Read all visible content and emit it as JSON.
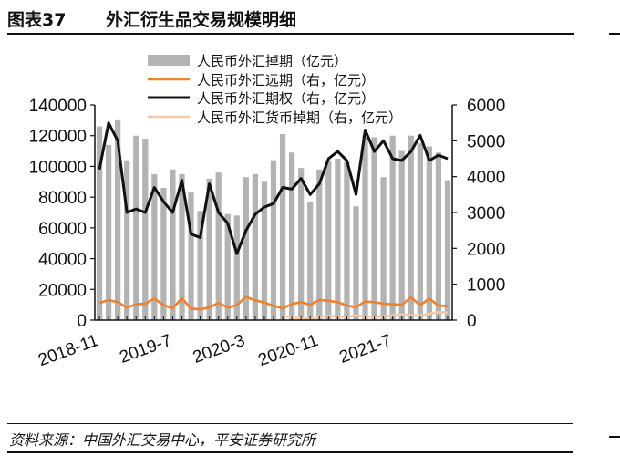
{
  "figure": {
    "number": "图表37",
    "title": "外汇衍生品交易规模明细",
    "source": "资料来源：中国外汇交易中心，平安证券研究所"
  },
  "chart_data": {
    "type": "bar",
    "x_tick_labels": [
      "2018-11",
      "2019-7",
      "2020-3",
      "2020-11",
      "2021-7"
    ],
    "left_axis": {
      "ylim": [
        0,
        140000
      ],
      "ticks": [
        "0",
        "20000",
        "40000",
        "60000",
        "80000",
        "100000",
        "120000",
        "140000"
      ]
    },
    "right_axis": {
      "ylim": [
        0,
        6000
      ],
      "ticks": [
        "0",
        "1000",
        "2000",
        "3000",
        "4000",
        "5000",
        "6000"
      ]
    },
    "x": [
      "2018-11",
      "2018-12",
      "2019-1",
      "2019-2",
      "2019-3",
      "2019-4",
      "2019-5",
      "2019-6",
      "2019-7",
      "2019-8",
      "2019-9",
      "2019-10",
      "2019-11",
      "2019-12",
      "2020-1",
      "2020-2",
      "2020-3",
      "2020-4",
      "2020-5",
      "2020-6",
      "2020-7",
      "2020-8",
      "2020-9",
      "2020-10",
      "2020-11",
      "2020-12",
      "2021-1",
      "2021-2",
      "2021-3",
      "2021-4",
      "2021-5",
      "2021-6",
      "2021-7",
      "2021-8",
      "2021-9",
      "2021-10",
      "2021-11",
      "2021-12",
      "2022-1"
    ],
    "series": [
      {
        "name": "人民币外汇掉期（亿元）",
        "type": "bar",
        "axis": "left",
        "color": "#b3b3b3",
        "values": [
          126000,
          114000,
          130000,
          104000,
          120000,
          118000,
          95000,
          86000,
          98000,
          95000,
          83000,
          71000,
          92000,
          96000,
          69000,
          68000,
          93000,
          95000,
          90000,
          104000,
          121000,
          109000,
          99000,
          77000,
          98000,
          104000,
          105000,
          103000,
          74000,
          120000,
          119000,
          93000,
          120000,
          110000,
          120000,
          115000,
          113000,
          109000,
          91000
        ]
      },
      {
        "name": "人民币外汇远期（右，亿元）",
        "type": "line",
        "axis": "right",
        "color": "#f07f2e",
        "values": [
          480,
          560,
          500,
          350,
          440,
          460,
          600,
          420,
          330,
          610,
          320,
          300,
          350,
          480,
          350,
          420,
          650,
          550,
          490,
          400,
          330,
          450,
          500,
          430,
          560,
          540,
          500,
          410,
          360,
          520,
          500,
          460,
          440,
          430,
          630,
          420,
          600,
          410,
          390
        ]
      },
      {
        "name": "人民币外汇期权（右，亿元）",
        "type": "line",
        "axis": "right",
        "color": "#111111",
        "values": [
          4200,
          5500,
          5000,
          3000,
          3100,
          3000,
          3700,
          3300,
          3000,
          3900,
          2400,
          2300,
          3800,
          3000,
          2700,
          1850,
          2500,
          2950,
          3150,
          3250,
          3700,
          3650,
          3950,
          3500,
          3800,
          4500,
          4700,
          4450,
          3500,
          5300,
          4700,
          5000,
          4500,
          4450,
          4700,
          5150,
          4450,
          4600,
          4500
        ]
      },
      {
        "name": "人民币外汇货币掉期（右，亿元）",
        "type": "line",
        "axis": "right",
        "color": "#f6c7a3",
        "values": [
          null,
          null,
          null,
          null,
          null,
          null,
          null,
          null,
          null,
          null,
          null,
          null,
          null,
          null,
          null,
          null,
          null,
          null,
          null,
          null,
          110,
          80,
          50,
          20,
          90,
          120,
          100,
          90,
          130,
          100,
          80,
          100,
          130,
          160,
          140,
          120,
          180,
          220,
          210
        ]
      }
    ],
    "legend_position": "top",
    "grid": false
  }
}
